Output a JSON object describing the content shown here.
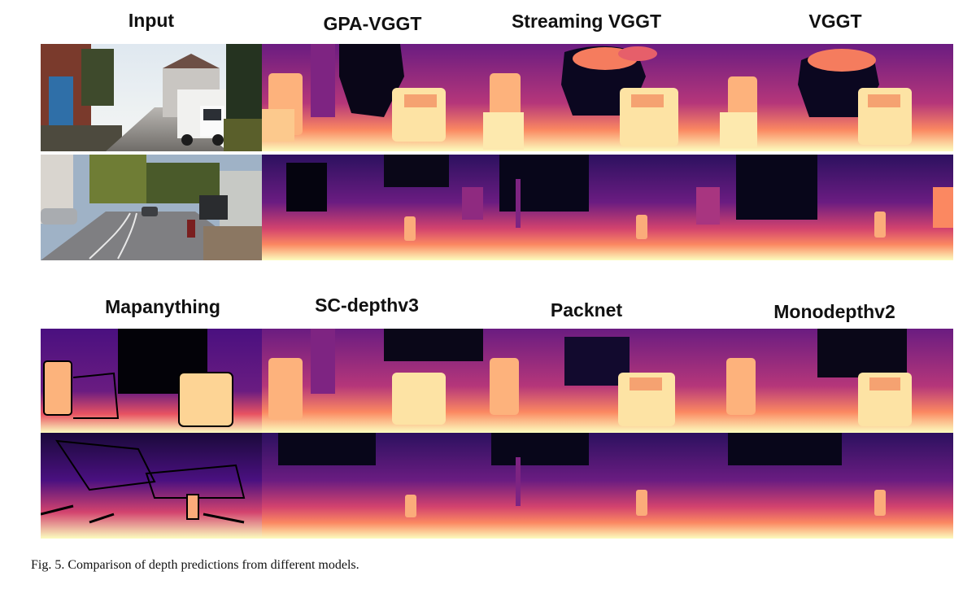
{
  "figure": {
    "row1_labels": [
      "Input",
      "GPA-VGGT",
      "Streaming VGGT",
      "VGGT"
    ],
    "row2_labels": [
      "Mapanything",
      "SC-depthv3",
      "Packnet",
      "Monodepthv2"
    ],
    "caption": "Fig. 5.  Comparison of depth predictions from different models."
  },
  "colors": {
    "depth_near": "#fcfdbf",
    "depth_mid": "#f8765c",
    "depth_far": "#6a1c81",
    "depth_sky": "#000004"
  }
}
